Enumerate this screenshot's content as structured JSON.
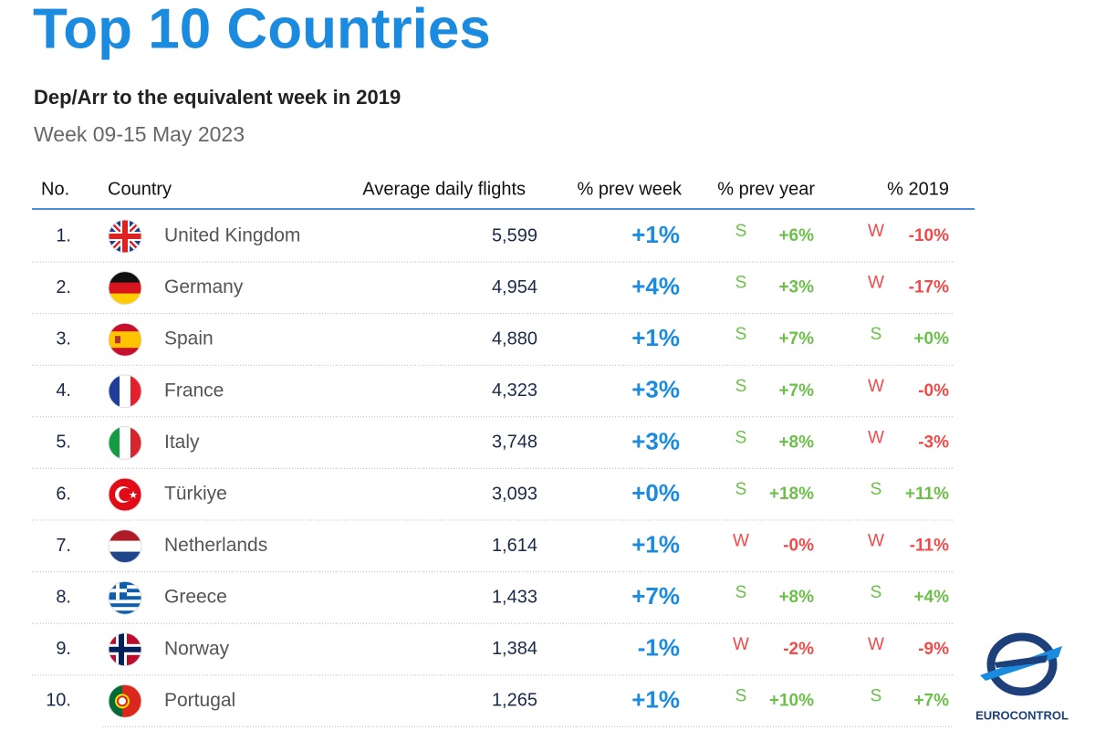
{
  "header": {
    "title": "Top 10 Countries",
    "subtitle": "Dep/Arr to the equivalent week in 2019",
    "period": "Week 09-15 May 2023"
  },
  "table": {
    "columns": [
      "No.",
      "Country",
      "Average daily flights",
      "% prev week",
      "% prev year",
      "% 2019"
    ],
    "rows": [
      {
        "no": "1.",
        "country": "United Kingdom",
        "flights": "5,599",
        "prev_week": "+1%",
        "prev_year": {
          "icon": "S",
          "value": "+6%",
          "color": "#6cc04a"
        },
        "y2019": {
          "icon": "W",
          "value": "-10%",
          "color": "#f04b4b"
        }
      },
      {
        "no": "2.",
        "country": "Germany",
        "flights": "4,954",
        "prev_week": "+4%",
        "prev_year": {
          "icon": "S",
          "value": "+3%",
          "color": "#6cc04a"
        },
        "y2019": {
          "icon": "W",
          "value": "-17%",
          "color": "#f04b4b"
        }
      },
      {
        "no": "3.",
        "country": "Spain",
        "flights": "4,880",
        "prev_week": "+1%",
        "prev_year": {
          "icon": "S",
          "value": "+7%",
          "color": "#6cc04a"
        },
        "y2019": {
          "icon": "S",
          "value": "+0%",
          "color": "#6cc04a"
        }
      },
      {
        "no": "4.",
        "country": "France",
        "flights": "4,323",
        "prev_week": "+3%",
        "prev_year": {
          "icon": "S",
          "value": "+7%",
          "color": "#6cc04a"
        },
        "y2019": {
          "icon": "W",
          "value": "-0%",
          "color": "#f04b4b"
        }
      },
      {
        "no": "5.",
        "country": "Italy",
        "flights": "3,748",
        "prev_week": "+3%",
        "prev_year": {
          "icon": "S",
          "value": "+8%",
          "color": "#6cc04a"
        },
        "y2019": {
          "icon": "W",
          "value": "-3%",
          "color": "#f04b4b"
        }
      },
      {
        "no": "6.",
        "country": "Türkiye",
        "flights": "3,093",
        "prev_week": "+0%",
        "prev_year": {
          "icon": "S",
          "value": "+18%",
          "color": "#6cc04a"
        },
        "y2019": {
          "icon": "S",
          "value": "+11%",
          "color": "#6cc04a"
        }
      },
      {
        "no": "7.",
        "country": "Netherlands",
        "flights": "1,614",
        "prev_week": "+1%",
        "prev_year": {
          "icon": "W",
          "value": "-0%",
          "color": "#f04b4b"
        },
        "y2019": {
          "icon": "W",
          "value": "-11%",
          "color": "#f04b4b"
        }
      },
      {
        "no": "8.",
        "country": "Greece",
        "flights": "1,433",
        "prev_week": "+7%",
        "prev_year": {
          "icon": "S",
          "value": "+8%",
          "color": "#6cc04a"
        },
        "y2019": {
          "icon": "S",
          "value": "+4%",
          "color": "#6cc04a"
        }
      },
      {
        "no": "9.",
        "country": "Norway",
        "flights": "1,384",
        "prev_week": "-1%",
        "prev_year": {
          "icon": "W",
          "value": "-2%",
          "color": "#f04b4b"
        },
        "y2019": {
          "icon": "W",
          "value": "-9%",
          "color": "#f04b4b"
        }
      },
      {
        "no": "10.",
        "country": "Portugal",
        "flights": "1,265",
        "prev_week": "+1%",
        "prev_year": {
          "icon": "S",
          "value": "+10%",
          "color": "#6cc04a"
        },
        "y2019": {
          "icon": "S",
          "value": "+7%",
          "color": "#6cc04a"
        }
      }
    ]
  },
  "logo": {
    "text": "EUROCONTROL"
  }
}
